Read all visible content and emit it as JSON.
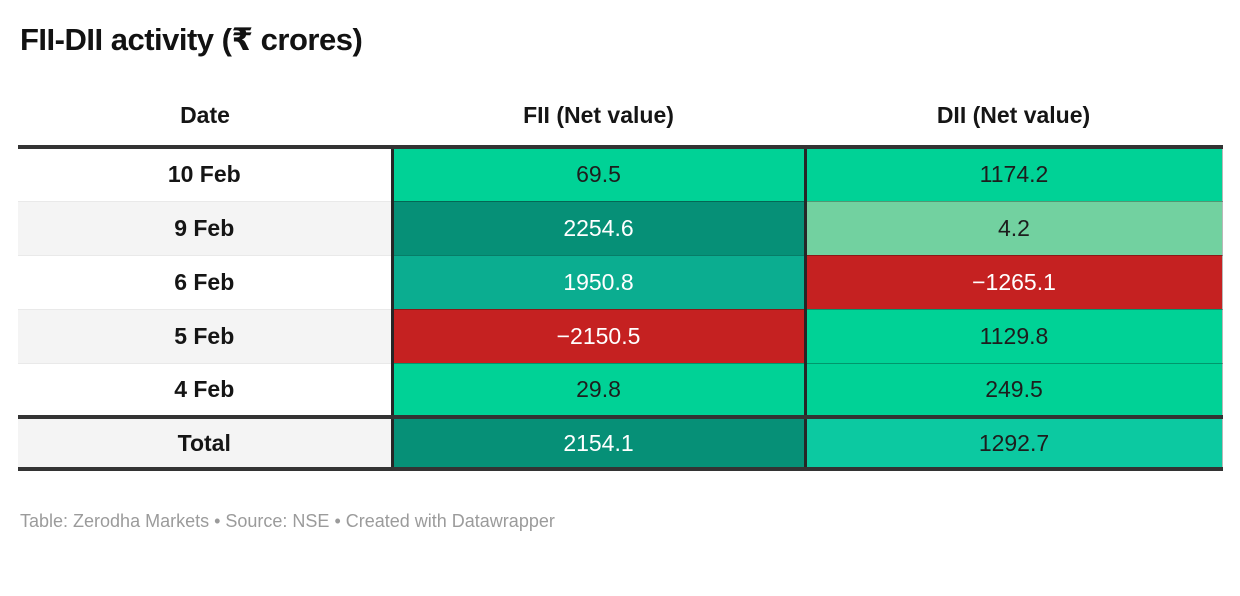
{
  "title": "FII-DII activity (₹ crores)",
  "table": {
    "header": {
      "date": "Date",
      "fii": "FII (Net value)",
      "dii": "DII (Net value)"
    },
    "rows": [
      {
        "date": "10 Feb",
        "fii": {
          "value": "69.5",
          "bg": "#00d296",
          "fg": "#1d1d1d"
        },
        "dii": {
          "value": "1174.2",
          "bg": "#00d296",
          "fg": "#1d1d1d"
        }
      },
      {
        "date": "9 Feb",
        "fii": {
          "value": "2254.6",
          "bg": "#069077",
          "fg": "#ffffff"
        },
        "dii": {
          "value": "4.2",
          "bg": "#72d1a0",
          "fg": "#1d1d1d"
        }
      },
      {
        "date": "6 Feb",
        "fii": {
          "value": "1950.8",
          "bg": "#0bad90",
          "fg": "#ffffff"
        },
        "dii": {
          "value": "−1265.1",
          "bg": "#c52121",
          "fg": "#ffffff"
        }
      },
      {
        "date": "5 Feb",
        "fii": {
          "value": "−2150.5",
          "bg": "#c52121",
          "fg": "#ffffff"
        },
        "dii": {
          "value": "1129.8",
          "bg": "#00d296",
          "fg": "#1d1d1d"
        }
      },
      {
        "date": "4 Feb",
        "fii": {
          "value": "29.8",
          "bg": "#00d296",
          "fg": "#1d1d1d"
        },
        "dii": {
          "value": "249.5",
          "bg": "#00d296",
          "fg": "#1d1d1d"
        }
      }
    ],
    "total": {
      "label": "Total",
      "fii": {
        "value": "2154.1",
        "bg": "#069077",
        "fg": "#ffffff"
      },
      "dii": {
        "value": "1292.7",
        "bg": "#0cc9a1",
        "fg": "#1d1d1d"
      }
    }
  },
  "footer": "Table: Zerodha Markets • Source: NSE • Created with Datawrapper",
  "colors": {
    "green_strong": "#00d296",
    "green_dark": "#069077",
    "green_medium": "#0bad90",
    "green_pale": "#72d1a0",
    "green_total": "#0cc9a1",
    "red_negative": "#c52121",
    "row_alt_gray": "#f4f4f4",
    "rule_dark": "#333333",
    "footer_gray": "#9b9b9b"
  },
  "chart_data": {
    "type": "table",
    "title": "FII-DII activity (₹ crores)",
    "columns": [
      "Date",
      "FII (Net value)",
      "DII (Net value)"
    ],
    "rows": [
      [
        "10 Feb",
        69.5,
        1174.2
      ],
      [
        "9 Feb",
        2254.6,
        4.2
      ],
      [
        "6 Feb",
        1950.8,
        -1265.1
      ],
      [
        "5 Feb",
        -2150.5,
        1129.8
      ],
      [
        "4 Feb",
        29.8,
        249.5
      ],
      [
        "Total",
        2154.1,
        1292.7
      ]
    ],
    "notes": "Heatmap-style cell shading: positive values green (darker = larger), negative values red"
  }
}
